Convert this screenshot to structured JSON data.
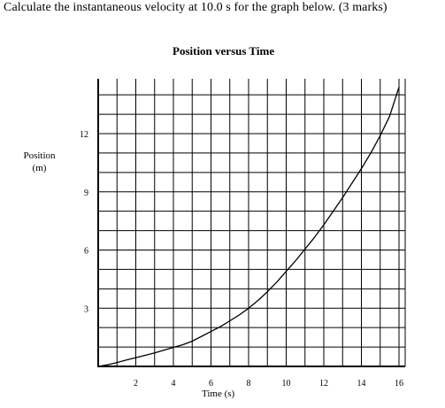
{
  "question": "Calculate the instantaneous velocity at 10.0 s for the graph below. (3 marks)",
  "chart_data": {
    "type": "line",
    "title": "Position versus Time",
    "xlabel": "Time (s)",
    "ylabel_lines": [
      "Position",
      "(m)"
    ],
    "xlim": [
      0,
      16
    ],
    "ylim": [
      0,
      14
    ],
    "xticks": [
      2,
      4,
      6,
      8,
      10,
      12,
      14,
      16
    ],
    "yticks": [
      3,
      6,
      9,
      12
    ],
    "grid": true,
    "series": [
      {
        "x": [
          0,
          0.5,
          1,
          1.5,
          2,
          2.5,
          3,
          3.5,
          4,
          4.5,
          5,
          5.5,
          6,
          6.5,
          7,
          7.5,
          8,
          8.5,
          9,
          9.5,
          10,
          10.5,
          11,
          11.5,
          12,
          12.5,
          13,
          13.5,
          14,
          14.5,
          15,
          15.5,
          16
        ],
        "y": [
          0,
          0.08,
          0.2,
          0.33,
          0.45,
          0.57,
          0.7,
          0.84,
          0.98,
          1.12,
          1.3,
          1.55,
          1.8,
          2.05,
          2.35,
          2.65,
          3.0,
          3.4,
          3.85,
          4.35,
          4.9,
          5.45,
          6.05,
          6.65,
          7.3,
          8.0,
          8.7,
          9.45,
          10.2,
          11.0,
          11.9,
          12.9,
          14.4
        ]
      }
    ]
  }
}
